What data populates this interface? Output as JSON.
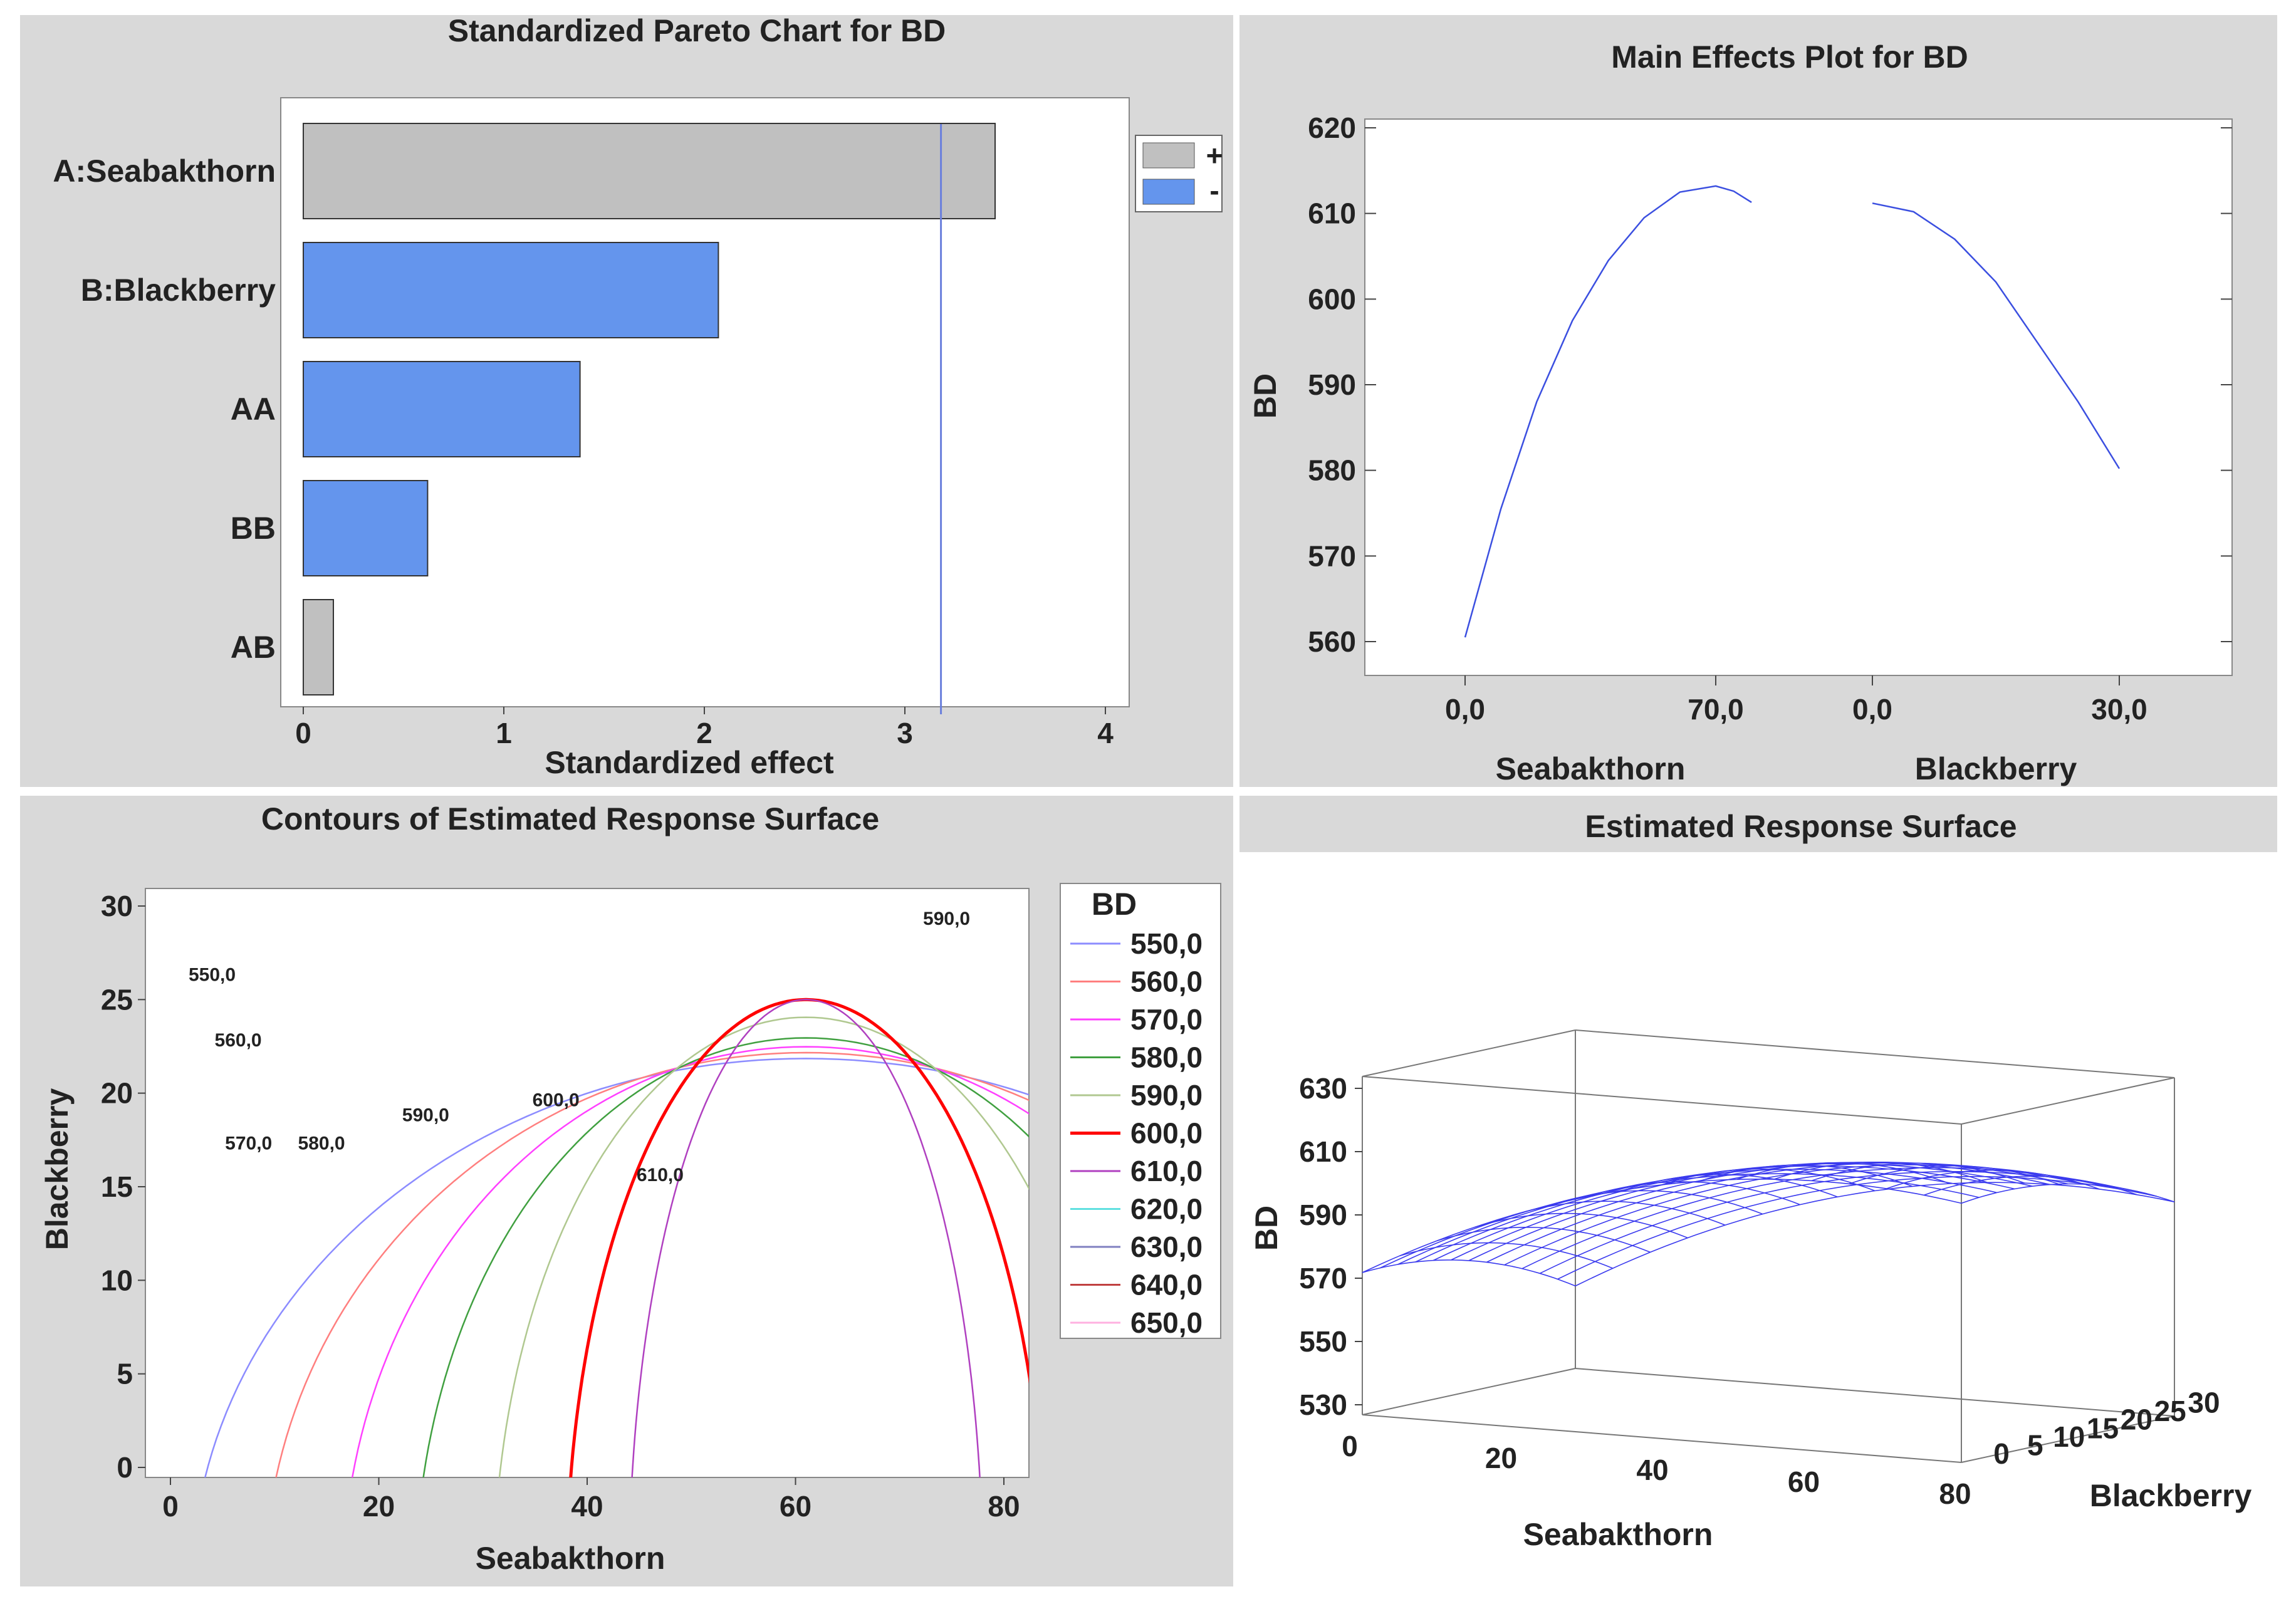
{
  "panels": {
    "pareto_title": "Standardized Pareto Chart for BD",
    "main_effects_title": "Main Effects Plot for BD",
    "contour_title": "Contours of Estimated Response Surface",
    "surface_title": "Estimated Response Surface"
  },
  "colors": {
    "panel_bg": "#d9d9d9",
    "positive_bar": "#c0c0c0",
    "negative_bar": "#6495ed",
    "ref_line": "#6a7fdc",
    "curve": "#3b4fe0",
    "mesh": "#3a3aee"
  },
  "chart_data": [
    {
      "type": "bar",
      "orientation": "horizontal",
      "title": "Standardized Pareto Chart for BD",
      "xlabel": "Standardized effect",
      "ylabel": "",
      "categories": [
        "A:Seabakthorn",
        "B:Blackberry",
        "AA",
        "BB",
        "AB"
      ],
      "values": [
        3.45,
        2.07,
        1.38,
        0.62,
        0.15
      ],
      "signs": [
        "+",
        "-",
        "-",
        "-",
        "+"
      ],
      "xlim": [
        0,
        4
      ],
      "xticks": [
        "0",
        "1",
        "2",
        "3",
        "4"
      ],
      "reference_line": 3.18,
      "legend": [
        {
          "label": "+",
          "color": "#c0c0c0"
        },
        {
          "label": "-",
          "color": "#6495ed"
        }
      ],
      "legend_position": "top-right"
    },
    {
      "type": "line",
      "title": "Main Effects Plot for BD",
      "ylabel": "BD",
      "ylim": [
        558,
        622
      ],
      "yticks": [
        "560",
        "570",
        "580",
        "590",
        "600",
        "610",
        "620"
      ],
      "factors": [
        {
          "name": "Seabakthorn",
          "low_label": "0,0",
          "high_label": "70,0",
          "x": [
            0,
            10,
            20,
            30,
            40,
            50,
            60,
            70,
            75,
            80
          ],
          "y": [
            560.5,
            575.5,
            588,
            597.5,
            604.5,
            609.5,
            612.5,
            613.2,
            612.6,
            611.3
          ]
        },
        {
          "name": "Blackberry",
          "low_label": "0,0",
          "high_label": "30,0",
          "x": [
            0,
            5,
            10,
            15,
            20,
            25,
            30
          ],
          "y": [
            611.2,
            610.2,
            607,
            602,
            595,
            588,
            580.2
          ]
        }
      ]
    },
    {
      "type": "contour",
      "title": "Contours of Estimated Response Surface",
      "xlabel": "Seabakthorn",
      "ylabel": "Blackberry",
      "xlim": [
        -1,
        82
      ],
      "ylim": [
        -1,
        31
      ],
      "xticks": [
        "0",
        "20",
        "40",
        "60",
        "80"
      ],
      "yticks": [
        "0",
        "5",
        "10",
        "15",
        "20",
        "25",
        "30"
      ],
      "legend_title": "BD",
      "levels": [
        {
          "label": "550,0",
          "color": "#8c8cff"
        },
        {
          "label": "560,0",
          "color": "#ff7f7f"
        },
        {
          "label": "570,0",
          "color": "#ff40ff"
        },
        {
          "label": "580,0",
          "color": "#40a040"
        },
        {
          "label": "590,0",
          "color": "#b0c890"
        },
        {
          "label": "600,0",
          "color": "#ff0000"
        },
        {
          "label": "610,0",
          "color": "#b040c0"
        },
        {
          "label": "620,0",
          "color": "#60e0e0"
        },
        {
          "label": "630,0",
          "color": "#8080c0"
        },
        {
          "label": "640,0",
          "color": "#c04040"
        },
        {
          "label": "650,0",
          "color": "#ffb0e0"
        }
      ],
      "contour_labels": [
        {
          "text": "550,0",
          "x": 4,
          "y": 26
        },
        {
          "text": "560,0",
          "x": 6.5,
          "y": 22.5
        },
        {
          "text": "570,0",
          "x": 7.5,
          "y": 17
        },
        {
          "text": "580,0",
          "x": 14.5,
          "y": 17
        },
        {
          "text": "590,0",
          "x": 24.5,
          "y": 18.5
        },
        {
          "text": "600,0",
          "x": 37,
          "y": 19.3
        },
        {
          "text": "610,0",
          "x": 47,
          "y": 15.3
        },
        {
          "text": "590,0",
          "x": 74.5,
          "y": 29
        }
      ]
    },
    {
      "type": "surface",
      "title": "Estimated Response Surface",
      "xlabel": "Seabakthorn",
      "ylabel": "Blackberry",
      "zlabel": "BD",
      "zticks": [
        "530",
        "550",
        "570",
        "590",
        "610",
        "630"
      ],
      "xticks": [
        "0",
        "20",
        "40",
        "60",
        "80"
      ],
      "yticks": [
        "0",
        "5",
        "10",
        "15",
        "20",
        "25",
        "30"
      ]
    }
  ]
}
